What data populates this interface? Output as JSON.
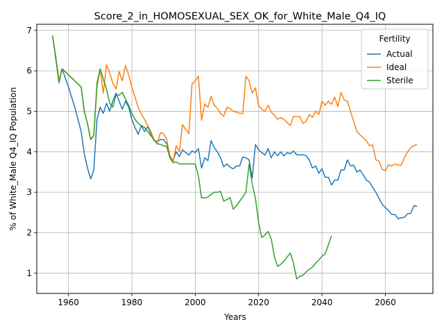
{
  "chart_data": {
    "type": "line",
    "title": "Score_2_in_HOMOSEXUAL_SEX_OK_for_White_Male_Q4_IQ",
    "xlabel": "Years",
    "ylabel": "% of White_Male Q4_IQ Population",
    "xlim": [
      1950,
      2075
    ],
    "ylim": [
      0.5,
      7.15
    ],
    "xticks": [
      1960,
      1980,
      2000,
      2020,
      2040,
      2060
    ],
    "yticks": [
      1,
      2,
      3,
      4,
      5,
      6,
      7
    ],
    "grid": true,
    "legend": {
      "title": "Fertility",
      "position": "top-right"
    },
    "series": [
      {
        "name": "Actual",
        "color": "#1f77b4",
        "points": [
          [
            1955,
            6.85
          ],
          [
            1956,
            6.35
          ],
          [
            1957,
            5.75
          ],
          [
            1958,
            6.05
          ],
          [
            1960,
            5.6
          ],
          [
            1962,
            5.1
          ],
          [
            1964,
            4.5
          ],
          [
            1965,
            3.95
          ],
          [
            1966,
            3.6
          ],
          [
            1967,
            3.33
          ],
          [
            1968,
            3.55
          ],
          [
            1969,
            4.8
          ],
          [
            1970,
            5.1
          ],
          [
            1971,
            4.95
          ],
          [
            1972,
            5.2
          ],
          [
            1973,
            5.0
          ],
          [
            1974,
            5.25
          ],
          [
            1975,
            5.45
          ],
          [
            1976,
            5.25
          ],
          [
            1977,
            5.05
          ],
          [
            1978,
            5.25
          ],
          [
            1979,
            5.1
          ],
          [
            1980,
            4.8
          ],
          [
            1981,
            4.6
          ],
          [
            1982,
            4.43
          ],
          [
            1983,
            4.65
          ],
          [
            1984,
            4.5
          ],
          [
            1985,
            4.62
          ],
          [
            1986,
            4.45
          ],
          [
            1987,
            4.28
          ],
          [
            1988,
            4.25
          ],
          [
            1989,
            4.3
          ],
          [
            1990,
            4.3
          ],
          [
            1991,
            4.2
          ],
          [
            1992,
            3.9
          ],
          [
            1993,
            3.78
          ],
          [
            1994,
            4.0
          ],
          [
            1995,
            3.88
          ],
          [
            1996,
            4.05
          ],
          [
            1997,
            3.98
          ],
          [
            1998,
            3.92
          ],
          [
            1999,
            4.02
          ],
          [
            2000,
            3.98
          ],
          [
            2001,
            4.08
          ],
          [
            2002,
            3.6
          ],
          [
            2003,
            3.85
          ],
          [
            2004,
            3.78
          ],
          [
            2005,
            4.28
          ],
          [
            2006,
            4.1
          ],
          [
            2007,
            4.0
          ],
          [
            2008,
            3.85
          ],
          [
            2009,
            3.63
          ],
          [
            2010,
            3.7
          ],
          [
            2011,
            3.62
          ],
          [
            2012,
            3.58
          ],
          [
            2013,
            3.65
          ],
          [
            2014,
            3.65
          ],
          [
            2015,
            3.87
          ],
          [
            2016,
            3.85
          ],
          [
            2017,
            3.8
          ],
          [
            2018,
            3.35
          ],
          [
            2019,
            4.18
          ],
          [
            2020,
            4.05
          ],
          [
            2021,
            3.98
          ],
          [
            2022,
            3.92
          ],
          [
            2023,
            4.08
          ],
          [
            2024,
            3.85
          ],
          [
            2025,
            4.0
          ],
          [
            2026,
            3.9
          ],
          [
            2027,
            4.0
          ],
          [
            2028,
            3.9
          ],
          [
            2029,
            3.98
          ],
          [
            2030,
            3.95
          ],
          [
            2031,
            4.02
          ],
          [
            2032,
            3.93
          ],
          [
            2033,
            3.92
          ],
          [
            2034,
            3.93
          ],
          [
            2035,
            3.9
          ],
          [
            2036,
            3.8
          ],
          [
            2037,
            3.6
          ],
          [
            2038,
            3.65
          ],
          [
            2039,
            3.47
          ],
          [
            2040,
            3.58
          ],
          [
            2041,
            3.37
          ],
          [
            2042,
            3.37
          ],
          [
            2043,
            3.18
          ],
          [
            2044,
            3.3
          ],
          [
            2045,
            3.3
          ],
          [
            2046,
            3.55
          ],
          [
            2047,
            3.55
          ],
          [
            2048,
            3.8
          ],
          [
            2049,
            3.65
          ],
          [
            2050,
            3.67
          ],
          [
            2051,
            3.5
          ],
          [
            2052,
            3.55
          ],
          [
            2053,
            3.43
          ],
          [
            2054,
            3.3
          ],
          [
            2055,
            3.25
          ],
          [
            2056,
            3.12
          ],
          [
            2057,
            3.0
          ],
          [
            2058,
            2.85
          ],
          [
            2059,
            2.7
          ],
          [
            2060,
            2.62
          ],
          [
            2061,
            2.55
          ],
          [
            2062,
            2.45
          ],
          [
            2063,
            2.45
          ],
          [
            2064,
            2.35
          ],
          [
            2065,
            2.37
          ],
          [
            2066,
            2.38
          ],
          [
            2067,
            2.47
          ],
          [
            2068,
            2.48
          ],
          [
            2069,
            2.67
          ],
          [
            2070,
            2.65
          ]
        ]
      },
      {
        "name": "Ideal",
        "color": "#ff7f0e",
        "points": [
          [
            1955,
            6.85
          ],
          [
            1956,
            6.35
          ],
          [
            1957,
            5.75
          ],
          [
            1958,
            6.05
          ],
          [
            1960,
            5.9
          ],
          [
            1962,
            5.75
          ],
          [
            1964,
            5.6
          ],
          [
            1965,
            5.0
          ],
          [
            1966,
            4.7
          ],
          [
            1967,
            4.32
          ],
          [
            1968,
            4.4
          ],
          [
            1969,
            5.6
          ],
          [
            1970,
            6.05
          ],
          [
            1971,
            5.45
          ],
          [
            1972,
            6.15
          ],
          [
            1973,
            5.95
          ],
          [
            1974,
            5.7
          ],
          [
            1975,
            5.55
          ],
          [
            1976,
            5.98
          ],
          [
            1977,
            5.75
          ],
          [
            1978,
            6.13
          ],
          [
            1979,
            5.9
          ],
          [
            1980,
            5.6
          ],
          [
            1981,
            5.35
          ],
          [
            1982,
            5.1
          ],
          [
            1983,
            4.93
          ],
          [
            1984,
            4.8
          ],
          [
            1985,
            4.65
          ],
          [
            1986,
            4.5
          ],
          [
            1987,
            4.3
          ],
          [
            1988,
            4.2
          ],
          [
            1989,
            4.47
          ],
          [
            1990,
            4.45
          ],
          [
            1991,
            4.3
          ],
          [
            1992,
            3.9
          ],
          [
            1993,
            3.75
          ],
          [
            1994,
            4.15
          ],
          [
            1995,
            4.0
          ],
          [
            1996,
            4.67
          ],
          [
            1997,
            4.55
          ],
          [
            1998,
            4.45
          ],
          [
            1999,
            5.68
          ],
          [
            2000,
            5.75
          ],
          [
            2001,
            5.87
          ],
          [
            2002,
            4.78
          ],
          [
            2003,
            5.18
          ],
          [
            2004,
            5.1
          ],
          [
            2005,
            5.37
          ],
          [
            2006,
            5.15
          ],
          [
            2007,
            5.07
          ],
          [
            2008,
            4.95
          ],
          [
            2009,
            4.88
          ],
          [
            2010,
            5.1
          ],
          [
            2011,
            5.07
          ],
          [
            2012,
            5.0
          ],
          [
            2013,
            4.98
          ],
          [
            2014,
            4.95
          ],
          [
            2015,
            4.95
          ],
          [
            2016,
            5.87
          ],
          [
            2017,
            5.75
          ],
          [
            2018,
            5.45
          ],
          [
            2019,
            5.58
          ],
          [
            2020,
            5.15
          ],
          [
            2021,
            5.05
          ],
          [
            2022,
            5.0
          ],
          [
            2023,
            5.15
          ],
          [
            2024,
            4.98
          ],
          [
            2025,
            4.9
          ],
          [
            2026,
            4.8
          ],
          [
            2027,
            4.85
          ],
          [
            2028,
            4.8
          ],
          [
            2029,
            4.72
          ],
          [
            2030,
            4.65
          ],
          [
            2031,
            4.87
          ],
          [
            2032,
            4.87
          ],
          [
            2033,
            4.87
          ],
          [
            2034,
            4.7
          ],
          [
            2035,
            4.75
          ],
          [
            2036,
            4.92
          ],
          [
            2037,
            4.85
          ],
          [
            2038,
            5.0
          ],
          [
            2039,
            4.92
          ],
          [
            2040,
            5.25
          ],
          [
            2041,
            5.15
          ],
          [
            2042,
            5.25
          ],
          [
            2043,
            5.17
          ],
          [
            2044,
            5.35
          ],
          [
            2045,
            5.12
          ],
          [
            2046,
            5.47
          ],
          [
            2047,
            5.28
          ],
          [
            2048,
            5.25
          ],
          [
            2049,
            5.0
          ],
          [
            2050,
            4.75
          ],
          [
            2051,
            4.5
          ],
          [
            2052,
            4.42
          ],
          [
            2053,
            4.35
          ],
          [
            2054,
            4.27
          ],
          [
            2055,
            4.15
          ],
          [
            2056,
            4.17
          ],
          [
            2057,
            3.8
          ],
          [
            2058,
            3.77
          ],
          [
            2059,
            3.57
          ],
          [
            2060,
            3.53
          ],
          [
            2061,
            3.68
          ],
          [
            2062,
            3.65
          ],
          [
            2063,
            3.7
          ],
          [
            2064,
            3.67
          ],
          [
            2065,
            3.67
          ],
          [
            2066,
            3.85
          ],
          [
            2067,
            4.0
          ],
          [
            2068,
            4.1
          ],
          [
            2069,
            4.15
          ],
          [
            2070,
            4.18
          ]
        ]
      },
      {
        "name": "Sterile",
        "color": "#2ca02c",
        "points": [
          [
            1955,
            6.87
          ],
          [
            1956,
            6.3
          ],
          [
            1957,
            5.7
          ],
          [
            1958,
            6.05
          ],
          [
            1960,
            5.9
          ],
          [
            1962,
            5.75
          ],
          [
            1964,
            5.6
          ],
          [
            1965,
            5.0
          ],
          [
            1966,
            4.7
          ],
          [
            1967,
            4.3
          ],
          [
            1968,
            4.4
          ],
          [
            1969,
            5.7
          ],
          [
            1970,
            6.05
          ],
          [
            1971,
            5.8
          ],
          [
            1972,
            5.55
          ],
          [
            1973,
            5.2
          ],
          [
            1974,
            5.1
          ],
          [
            1975,
            5.4
          ],
          [
            1976,
            5.4
          ],
          [
            1977,
            5.47
          ],
          [
            1978,
            5.3
          ],
          [
            1979,
            5.15
          ],
          [
            1980,
            4.95
          ],
          [
            1981,
            4.8
          ],
          [
            1982,
            4.7
          ],
          [
            1983,
            4.65
          ],
          [
            1984,
            4.6
          ],
          [
            1985,
            4.5
          ],
          [
            1986,
            4.4
          ],
          [
            1987,
            4.3
          ],
          [
            1988,
            4.2
          ],
          [
            1989,
            4.18
          ],
          [
            1990,
            4.15
          ],
          [
            1991,
            4.13
          ],
          [
            1992,
            3.85
          ],
          [
            1993,
            3.73
          ],
          [
            1994,
            3.75
          ],
          [
            1995,
            3.7
          ],
          [
            1996,
            3.7
          ],
          [
            1997,
            3.7
          ],
          [
            1998,
            3.7
          ],
          [
            1999,
            3.7
          ],
          [
            2000,
            3.7
          ],
          [
            2001,
            3.4
          ],
          [
            2002,
            2.86
          ],
          [
            2003,
            2.86
          ],
          [
            2004,
            2.88
          ],
          [
            2005,
            2.95
          ],
          [
            2006,
            3.0
          ],
          [
            2007,
            3.0
          ],
          [
            2008,
            3.02
          ],
          [
            2009,
            2.78
          ],
          [
            2010,
            2.82
          ],
          [
            2011,
            2.87
          ],
          [
            2012,
            2.58
          ],
          [
            2013,
            2.67
          ],
          [
            2014,
            2.78
          ],
          [
            2015,
            2.88
          ],
          [
            2016,
            3.0
          ],
          [
            2017,
            3.7
          ],
          [
            2018,
            3.2
          ],
          [
            2019,
            2.85
          ],
          [
            2020,
            2.25
          ],
          [
            2021,
            1.88
          ],
          [
            2022,
            1.95
          ],
          [
            2023,
            2.03
          ],
          [
            2024,
            1.85
          ],
          [
            2025,
            1.4
          ],
          [
            2026,
            1.17
          ],
          [
            2027,
            1.22
          ],
          [
            2028,
            1.3
          ],
          [
            2029,
            1.4
          ],
          [
            2030,
            1.5
          ],
          [
            2031,
            1.25
          ],
          [
            2032,
            0.86
          ],
          [
            2033,
            0.92
          ],
          [
            2034,
            0.95
          ],
          [
            2035,
            1.03
          ],
          [
            2036,
            1.1
          ],
          [
            2037,
            1.15
          ],
          [
            2038,
            1.25
          ],
          [
            2039,
            1.33
          ],
          [
            2040,
            1.42
          ],
          [
            2041,
            1.48
          ],
          [
            2042,
            1.7
          ],
          [
            2043,
            1.92
          ]
        ]
      }
    ]
  }
}
